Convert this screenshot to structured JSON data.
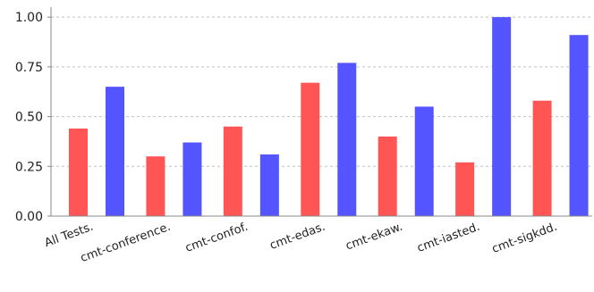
{
  "colors": {
    "series_1": "#ff5555",
    "series_2": "#5555ff",
    "axis": "#888888",
    "grid": "#c0c0c0",
    "background": "#ffffff"
  },
  "chart_data": {
    "type": "bar",
    "title": "",
    "xlabel": "",
    "ylabel": "",
    "ylim": [
      0,
      1.05
    ],
    "yticks": [
      "0.00",
      "0.25",
      "0.50",
      "0.75",
      "1.00"
    ],
    "grid": true,
    "legend": "none",
    "categories": [
      "All Tests.",
      "cmt-conference.",
      "cmt-confof.",
      "cmt-edas.",
      "cmt-ekaw.",
      "cmt-iasted.",
      "cmt-sigkdd."
    ],
    "series": [
      {
        "values": [
          0.44,
          0.3,
          0.45,
          0.67,
          0.4,
          0.27,
          0.58
        ]
      },
      {
        "values": [
          0.65,
          0.37,
          0.31,
          0.77,
          0.55,
          1.0,
          0.91
        ]
      }
    ]
  }
}
